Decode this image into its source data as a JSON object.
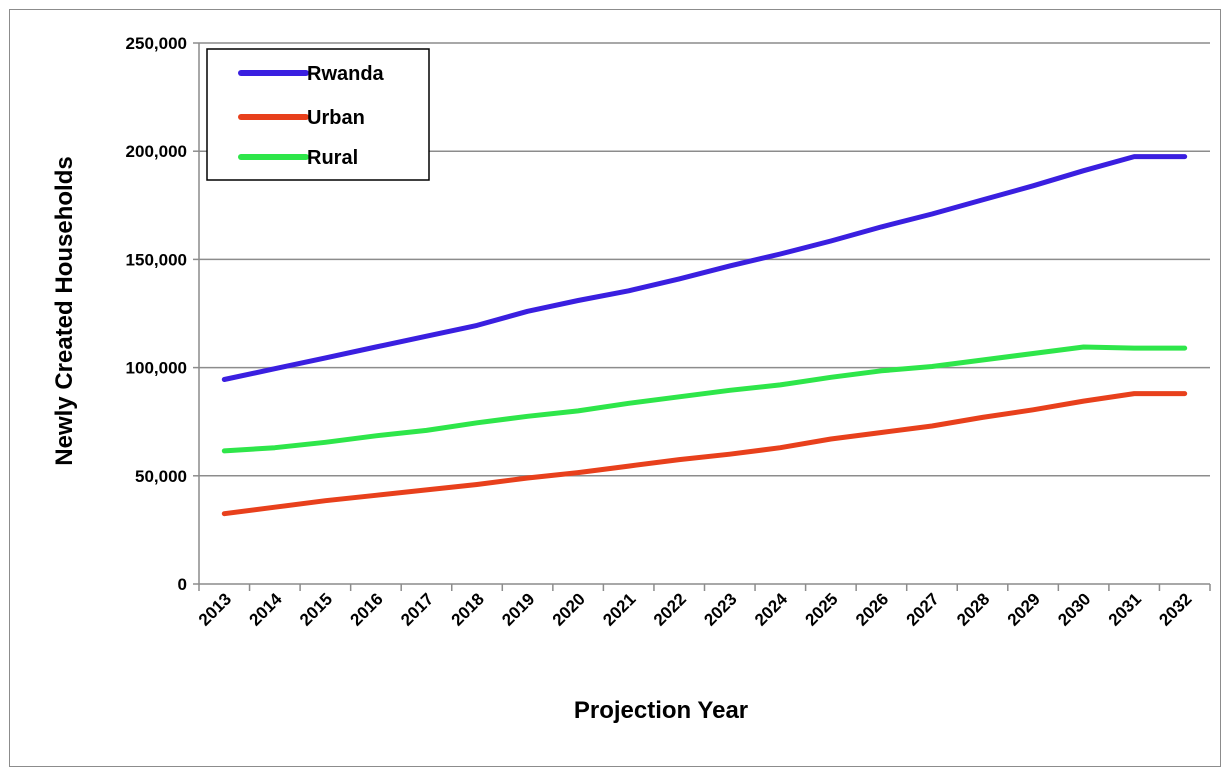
{
  "chart_data": {
    "type": "line",
    "title": "",
    "xlabel": "Projection Year",
    "ylabel": "Newly Created  Households",
    "ylim": [
      0,
      250000
    ],
    "yticks": [
      0,
      50000,
      100000,
      150000,
      200000,
      250000
    ],
    "ytick_labels": [
      "0",
      "50,000",
      "100,000",
      "150,000",
      "200,000",
      "250,000"
    ],
    "grid": "horizontal",
    "legend_position": "top-left",
    "categories": [
      "2013",
      "2014",
      "2015",
      "2016",
      "2017",
      "2018",
      "2019",
      "2020",
      "2021",
      "2022",
      "2023",
      "2024",
      "2025",
      "2026",
      "2027",
      "2028",
      "2029",
      "2030",
      "2031",
      "2032"
    ],
    "series": [
      {
        "name": "Rwanda",
        "color": "#3a1fe0",
        "values": [
          94500,
          99500,
          104500,
          109500,
          114500,
          119500,
          126000,
          131000,
          135500,
          141000,
          147000,
          152500,
          158500,
          165000,
          171000,
          177500,
          184000,
          191000,
          197500,
          197500
        ]
      },
      {
        "name": "Urban",
        "color": "#e8401c",
        "values": [
          32500,
          35500,
          38500,
          41000,
          43500,
          46000,
          49000,
          51500,
          54500,
          57500,
          60000,
          63000,
          67000,
          70000,
          73000,
          77000,
          80500,
          84500,
          88000,
          88000
        ]
      },
      {
        "name": "Rural",
        "color": "#2ee64a",
        "values": [
          61500,
          63000,
          65500,
          68500,
          71000,
          74500,
          77500,
          80000,
          83500,
          86500,
          89500,
          92000,
          95500,
          98500,
          100500,
          103500,
          106500,
          109500,
          109000,
          109000
        ]
      }
    ]
  }
}
